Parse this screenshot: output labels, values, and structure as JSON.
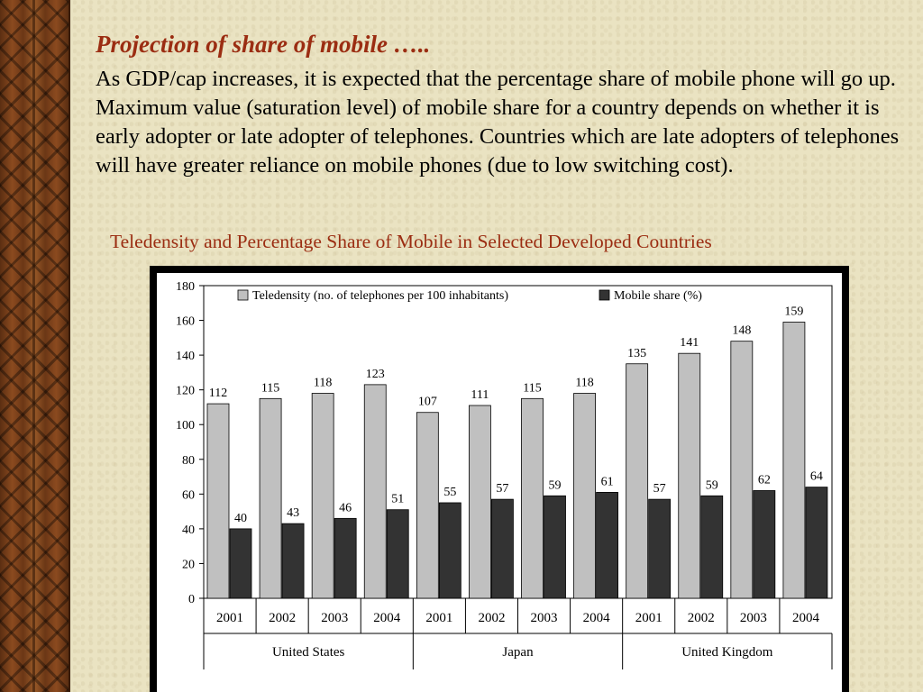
{
  "slide": {
    "title": "Projection of share of mobile …..",
    "body": "As GDP/cap increases, it is expected that the percentage share of mobile phone will go up. Maximum value (saturation level) of mobile share for a country depends on whether it is early adopter or late adopter of telephones. Countries which are late adopters of telephones will have greater reliance on mobile phones (due to low switching cost).",
    "chart_caption": "Teledensity and Percentage Share of Mobile in Selected Developed Countries"
  },
  "chart_data": {
    "type": "bar",
    "title": "Teledensity and Percentage Share of Mobile in Selected Developed Countries",
    "categories": [
      "2001",
      "2002",
      "2003",
      "2004",
      "2001",
      "2002",
      "2003",
      "2004",
      "2001",
      "2002",
      "2003",
      "2004"
    ],
    "groups": [
      {
        "name": "United States",
        "count": 4
      },
      {
        "name": "Japan",
        "count": 4
      },
      {
        "name": "United Kingdom",
        "count": 4
      }
    ],
    "series": [
      {
        "name": "Teledensity (no. of telephones per 100 inhabitants)",
        "color": "#c0c0c0",
        "values": [
          112,
          115,
          118,
          123,
          107,
          111,
          115,
          118,
          135,
          141,
          148,
          159
        ]
      },
      {
        "name": "Mobile share (%)",
        "color": "#333333",
        "values": [
          40,
          43,
          46,
          51,
          55,
          57,
          59,
          61,
          57,
          59,
          62,
          64
        ]
      }
    ],
    "yticks": [
      0,
      20,
      40,
      60,
      80,
      100,
      120,
      140,
      160,
      180
    ],
    "ylim": [
      0,
      180
    ],
    "legend": "top-inside",
    "grid": false
  }
}
